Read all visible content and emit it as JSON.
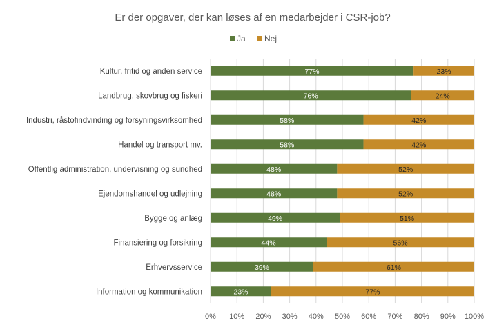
{
  "chart_data": {
    "type": "bar",
    "orientation": "horizontal",
    "stacked": true,
    "title": "Er der opgaver, der kan løses af en medarbejder i CSR-job?",
    "legend_position": "top",
    "grid": true,
    "xlim": [
      0,
      100
    ],
    "xticks": [
      "0%",
      "10%",
      "20%",
      "30%",
      "40%",
      "50%",
      "60%",
      "70%",
      "80%",
      "90%",
      "100%"
    ],
    "categories": [
      "Kultur, fritid og anden service",
      "Landbrug, skovbrug og fiskeri",
      "Industri, råstofindvinding og forsyningsvirksomhed",
      "Handel og transport mv.",
      "Offentlig administration, undervisning og sundhed",
      "Ejendomshandel og udlejning",
      "Bygge og anlæg",
      "Finansiering og forsikring",
      "Erhvervsservice",
      "Information og kommunikation"
    ],
    "series": [
      {
        "name": "Ja",
        "color": "#5b7a3b",
        "values": [
          77,
          76,
          58,
          58,
          48,
          48,
          49,
          44,
          39,
          23
        ]
      },
      {
        "name": "Nej",
        "color": "#c58b29",
        "values": [
          23,
          24,
          42,
          42,
          52,
          52,
          51,
          56,
          61,
          77
        ]
      }
    ]
  }
}
